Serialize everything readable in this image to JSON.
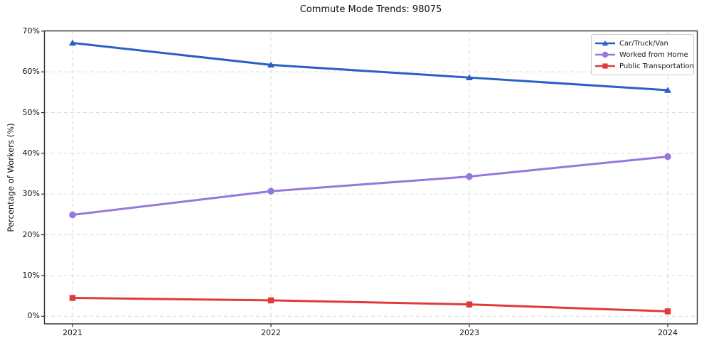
{
  "chart_data": {
    "type": "line",
    "title": "Commute Mode Trends: 98075",
    "xlabel": "",
    "ylabel": "Percentage of Workers (%)",
    "x": [
      "2021",
      "2022",
      "2023",
      "2024"
    ],
    "series": [
      {
        "name": "Car/Truck/Van",
        "color": "#2a5fc4",
        "marker": "triangle",
        "values": [
          67.1,
          61.7,
          58.6,
          55.5
        ]
      },
      {
        "name": "Worked from Home",
        "color": "#9678dc",
        "marker": "circle",
        "values": [
          24.9,
          30.7,
          34.3,
          39.2
        ]
      },
      {
        "name": "Public Transportation",
        "color": "#e03b3b",
        "marker": "square",
        "values": [
          4.5,
          3.9,
          2.9,
          1.2
        ]
      }
    ],
    "ylim": [
      -2,
      70
    ],
    "yticks": [
      0,
      10,
      20,
      30,
      40,
      50,
      60,
      70
    ],
    "ytick_labels": [
      "0%",
      "10%",
      "20%",
      "30%",
      "40%",
      "50%",
      "60%",
      "70%"
    ],
    "grid": true,
    "grid_style": "dashed",
    "grid_color": "#d9d9d9",
    "spine_color": "#2a2a2a",
    "text_color": "#111111",
    "background": "#ffffff",
    "legend_position": "upper right",
    "line_width": 3
  }
}
